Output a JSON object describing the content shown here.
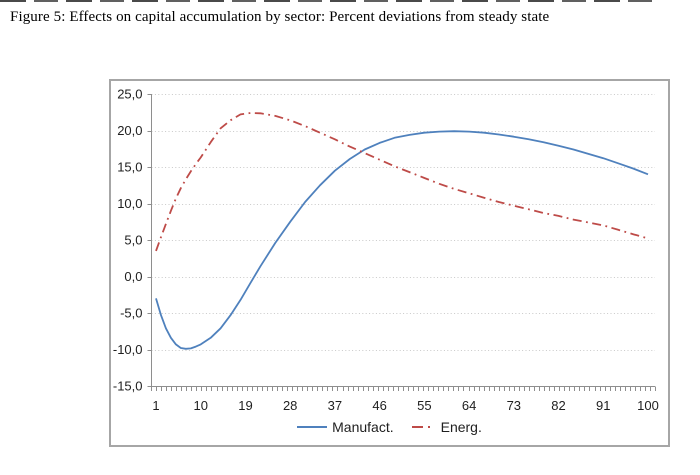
{
  "page": {
    "figure_title": "Figure 5: Effects on capital accumulation by sector: Percent deviations from steady state"
  },
  "chart_data": {
    "type": "line",
    "title": "Effects on capital accumulation by sector: Percent deviations from steady state",
    "xlabel": "",
    "ylabel": "",
    "xlim": [
      1,
      100
    ],
    "ylim": [
      -15,
      25
    ],
    "grid": "horizontal-dotted",
    "legend_position": "bottom-center",
    "decimal_separator": ",",
    "xticks": [
      1,
      10,
      19,
      28,
      37,
      46,
      55,
      64,
      73,
      82,
      91,
      100
    ],
    "ytick_values": [
      25,
      20,
      15,
      10,
      5,
      0,
      -5,
      -10,
      -15
    ],
    "ytick_labels": [
      "25,0",
      "20,0",
      "15,0",
      "10,0",
      "5,0",
      "0,0",
      "-5,0",
      "-10,0",
      "-15,0"
    ],
    "x": [
      1,
      2,
      3,
      4,
      5,
      6,
      7,
      8,
      9,
      10,
      12,
      14,
      16,
      18,
      20,
      22,
      25,
      28,
      31,
      34,
      37,
      40,
      43,
      46,
      49,
      52,
      55,
      58,
      61,
      64,
      67,
      70,
      73,
      76,
      79,
      82,
      85,
      88,
      91,
      94,
      97,
      100
    ],
    "series": [
      {
        "name": "Manufact.",
        "color": "#4F81BD",
        "style": "solid",
        "values": [
          -3.0,
          -5.3,
          -7.1,
          -8.4,
          -9.3,
          -9.8,
          -9.9,
          -9.85,
          -9.6,
          -9.3,
          -8.4,
          -7.1,
          -5.3,
          -3.2,
          -0.9,
          1.4,
          4.6,
          7.5,
          10.2,
          12.5,
          14.5,
          16.1,
          17.4,
          18.3,
          19.0,
          19.4,
          19.7,
          19.85,
          19.9,
          19.85,
          19.7,
          19.45,
          19.15,
          18.8,
          18.4,
          17.9,
          17.4,
          16.8,
          16.2,
          15.5,
          14.8,
          14.0
        ]
      },
      {
        "name": "Energ.",
        "color": "#BE4B48",
        "style": "dash-dot",
        "values": [
          3.5,
          5.4,
          7.2,
          9.0,
          10.7,
          12.1,
          13.3,
          14.4,
          15.4,
          16.3,
          18.4,
          20.3,
          21.4,
          22.2,
          22.4,
          22.35,
          22.0,
          21.4,
          20.6,
          19.7,
          18.8,
          17.8,
          16.9,
          16.0,
          15.1,
          14.3,
          13.5,
          12.7,
          12.0,
          11.4,
          10.8,
          10.2,
          9.7,
          9.2,
          8.7,
          8.3,
          7.8,
          7.4,
          7.0,
          6.4,
          5.8,
          5.2
        ]
      }
    ],
    "colors": {
      "gridline": "#C9C9C9",
      "axis": "#8E8E8E",
      "tick_text": "#1F1F1F",
      "chart_border": "#A6A6A6"
    }
  }
}
